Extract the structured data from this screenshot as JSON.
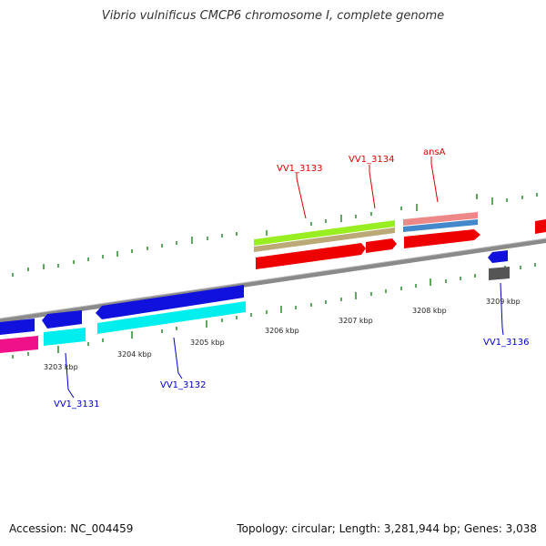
{
  "title": "Vibrio vulnificus CMCP6 chromosome I, complete genome",
  "accession": "Accession: NC_004459",
  "summary": "Topology: circular; Length: 3,281,944 bp; Genes: 3,038",
  "colors": {
    "backbone": "#888888",
    "tick": "#2a8a2a",
    "forward_label": "#dd0000",
    "reverse_label": "#0000cc",
    "red": "#ee0000",
    "blue": "#1111dd",
    "cyan": "#00eeee",
    "magenta": "#ee1188",
    "lime": "#99ee22",
    "khaki": "#bbaa77",
    "salmon": "#ee8888",
    "steel": "#4488cc",
    "gray": "#555555"
  },
  "kbp_labels": [
    "3203 kbp",
    "3204 kbp",
    "3205 kbp",
    "3206 kbp",
    "3207 kbp",
    "3208 kbp",
    "3209 kbp"
  ],
  "gene_labels": [
    {
      "text": "VV1_3133",
      "strand": "forward"
    },
    {
      "text": "VV1_3134",
      "strand": "forward"
    },
    {
      "text": "ansA",
      "strand": "forward"
    },
    {
      "text": "VV1_3131",
      "strand": "reverse"
    },
    {
      "text": "VV1_3132",
      "strand": "reverse"
    },
    {
      "text": "VV1_3136",
      "strand": "reverse"
    }
  ]
}
